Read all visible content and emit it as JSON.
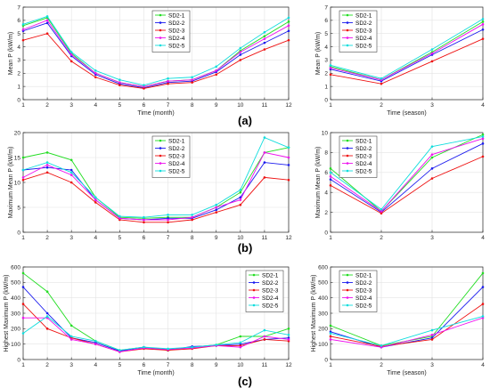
{
  "panels": [
    {
      "label": "(a)"
    },
    {
      "label": "(b)"
    },
    {
      "label": "(c)"
    }
  ],
  "chart_data": [
    {
      "type": "line",
      "x": [
        1,
        2,
        3,
        4,
        5,
        6,
        7,
        8,
        9,
        10,
        11,
        12
      ],
      "xlim": [
        1,
        12
      ],
      "ylim": [
        0,
        7
      ],
      "xticks": [
        1,
        2,
        3,
        4,
        5,
        6,
        7,
        8,
        9,
        10,
        11,
        12
      ],
      "yticks": [
        0,
        1,
        2,
        3,
        4,
        5,
        6,
        7
      ],
      "xlabel": "Time (month)",
      "ylabel": "Mean P (kW/m)",
      "legend": "top-center",
      "grid": true,
      "series": [
        {
          "name": "SD2-1",
          "color": "#22dd22",
          "values": [
            5.6,
            6.2,
            3.5,
            2.0,
            1.3,
            1.0,
            1.4,
            1.5,
            2.2,
            3.7,
            4.8,
            5.9
          ]
        },
        {
          "name": "SD2-2",
          "color": "#1a1aee",
          "values": [
            5.2,
            5.8,
            3.3,
            1.9,
            1.2,
            0.9,
            1.3,
            1.4,
            2.1,
            3.4,
            4.3,
            5.2
          ]
        },
        {
          "name": "SD2-3",
          "color": "#ee1111",
          "values": [
            4.5,
            5.0,
            2.9,
            1.7,
            1.1,
            0.85,
            1.2,
            1.3,
            1.9,
            3.0,
            3.8,
            4.5
          ]
        },
        {
          "name": "SD2-4",
          "color": "#ee11ee",
          "values": [
            5.3,
            6.0,
            3.4,
            2.0,
            1.3,
            1.0,
            1.4,
            1.5,
            2.2,
            3.6,
            4.6,
            5.6
          ]
        },
        {
          "name": "SD2-5",
          "color": "#11dddd",
          "values": [
            5.7,
            6.3,
            3.6,
            2.2,
            1.5,
            1.1,
            1.6,
            1.7,
            2.5,
            3.9,
            5.1,
            6.2
          ]
        }
      ]
    },
    {
      "type": "line",
      "x": [
        1,
        2,
        3,
        4
      ],
      "xlim": [
        1,
        4
      ],
      "ylim": [
        0,
        7
      ],
      "xticks": [
        1,
        2,
        3,
        4
      ],
      "yticks": [
        0,
        1,
        2,
        3,
        4,
        5,
        6,
        7
      ],
      "xlabel": "Time (season)",
      "ylabel": "Mean P (kW/m)",
      "legend": "top-left",
      "grid": true,
      "series": [
        {
          "name": "SD2-1",
          "color": "#22dd22",
          "values": [
            2.5,
            1.5,
            3.6,
            5.9
          ]
        },
        {
          "name": "SD2-2",
          "color": "#1a1aee",
          "values": [
            2.3,
            1.4,
            3.4,
            5.3
          ]
        },
        {
          "name": "SD2-3",
          "color": "#ee1111",
          "values": [
            1.9,
            1.2,
            2.9,
            4.6
          ]
        },
        {
          "name": "SD2-4",
          "color": "#ee11ee",
          "values": [
            2.4,
            1.5,
            3.5,
            5.7
          ]
        },
        {
          "name": "SD2-5",
          "color": "#11dddd",
          "values": [
            2.6,
            1.6,
            3.8,
            6.1
          ]
        }
      ]
    },
    {
      "type": "line",
      "x": [
        1,
        2,
        3,
        4,
        5,
        6,
        7,
        8,
        9,
        10,
        11,
        12
      ],
      "xlim": [
        1,
        12
      ],
      "ylim": [
        0,
        20
      ],
      "xticks": [
        1,
        2,
        3,
        4,
        5,
        6,
        7,
        8,
        9,
        10,
        11,
        12
      ],
      "yticks": [
        0,
        5,
        10,
        15,
        20
      ],
      "xlabel": "",
      "ylabel": "Maximum Mean P (kW/m)",
      "legend": "top-center",
      "grid": true,
      "series": [
        {
          "name": "SD2-1",
          "color": "#22dd22",
          "values": [
            15,
            16,
            14.5,
            7,
            3,
            2.8,
            3,
            3,
            5,
            8,
            16,
            17
          ]
        },
        {
          "name": "SD2-2",
          "color": "#1a1aee",
          "values": [
            12.5,
            13,
            12.5,
            6.5,
            2.8,
            2.5,
            2.8,
            2.8,
            4.5,
            7,
            14,
            13.5
          ]
        },
        {
          "name": "SD2-3",
          "color": "#ee1111",
          "values": [
            10.5,
            12,
            10,
            6,
            2.5,
            2,
            2,
            2.5,
            4,
            5.5,
            11,
            10.5
          ]
        },
        {
          "name": "SD2-4",
          "color": "#ee11ee",
          "values": [
            11,
            13.5,
            11.5,
            6.5,
            2.8,
            2.5,
            2.5,
            3,
            5,
            6.5,
            16,
            15
          ]
        },
        {
          "name": "SD2-5",
          "color": "#11dddd",
          "values": [
            12.5,
            14,
            12,
            7,
            3.2,
            3,
            3.5,
            3.5,
            5.5,
            8.5,
            19,
            17
          ]
        }
      ]
    },
    {
      "type": "line",
      "x": [
        1,
        2,
        3,
        4
      ],
      "xlim": [
        1,
        4
      ],
      "ylim": [
        0,
        10
      ],
      "xticks": [
        1,
        2,
        3,
        4
      ],
      "yticks": [
        0,
        2,
        4,
        6,
        8,
        10
      ],
      "xlabel": "",
      "ylabel": "Maximum Mean P (kW/m)",
      "legend": "top-left",
      "grid": true,
      "series": [
        {
          "name": "SD2-1",
          "color": "#22dd22",
          "values": [
            6.4,
            2.1,
            7.5,
            9.8
          ]
        },
        {
          "name": "SD2-2",
          "color": "#1a1aee",
          "values": [
            5.3,
            2.0,
            6.4,
            8.9
          ]
        },
        {
          "name": "SD2-3",
          "color": "#ee1111",
          "values": [
            4.7,
            1.9,
            5.4,
            7.6
          ]
        },
        {
          "name": "SD2-4",
          "color": "#ee11ee",
          "values": [
            5.6,
            2.1,
            7.8,
            9.4
          ]
        },
        {
          "name": "SD2-5",
          "color": "#11dddd",
          "values": [
            6.0,
            2.3,
            8.6,
            9.6
          ]
        }
      ]
    },
    {
      "type": "line",
      "x": [
        1,
        2,
        3,
        4,
        5,
        6,
        7,
        8,
        9,
        10,
        11,
        12
      ],
      "xlim": [
        1,
        12
      ],
      "ylim": [
        0,
        600
      ],
      "xticks": [
        1,
        2,
        3,
        4,
        5,
        6,
        7,
        8,
        9,
        10,
        11,
        12
      ],
      "yticks": [
        0,
        100,
        200,
        300,
        400,
        500,
        600
      ],
      "xlabel": "Time (month)",
      "ylabel": "Highest Maximum P (kW/m)",
      "legend": "top-right",
      "grid": true,
      "series": [
        {
          "name": "SD2-1",
          "color": "#22dd22",
          "values": [
            560,
            440,
            220,
            120,
            60,
            80,
            60,
            80,
            95,
            150,
            150,
            200
          ]
        },
        {
          "name": "SD2-2",
          "color": "#1a1aee",
          "values": [
            470,
            300,
            140,
            110,
            55,
            80,
            60,
            85,
            90,
            100,
            130,
            140
          ]
        },
        {
          "name": "SD2-3",
          "color": "#ee1111",
          "values": [
            360,
            200,
            140,
            100,
            50,
            70,
            60,
            70,
            90,
            90,
            130,
            120
          ]
        },
        {
          "name": "SD2-4",
          "color": "#ee11ee",
          "values": [
            270,
            270,
            130,
            100,
            50,
            75,
            65,
            75,
            90,
            80,
            150,
            130
          ]
        },
        {
          "name": "SD2-5",
          "color": "#11dddd",
          "values": [
            170,
            280,
            150,
            120,
            60,
            80,
            70,
            80,
            95,
            110,
            190,
            160
          ]
        }
      ]
    },
    {
      "type": "line",
      "x": [
        1,
        2,
        3,
        4
      ],
      "xlim": [
        1,
        4
      ],
      "ylim": [
        0,
        600
      ],
      "xticks": [
        1,
        2,
        3,
        4
      ],
      "yticks": [
        0,
        100,
        200,
        300,
        400,
        500,
        600
      ],
      "xlabel": "Time (season)",
      "ylabel": "Highest Maximum P (kW/m)",
      "legend": "top-left",
      "grid": true,
      "series": [
        {
          "name": "SD2-1",
          "color": "#22dd22",
          "values": [
            220,
            90,
            150,
            560
          ]
        },
        {
          "name": "SD2-2",
          "color": "#1a1aee",
          "values": [
            180,
            80,
            140,
            470
          ]
        },
        {
          "name": "SD2-3",
          "color": "#ee1111",
          "values": [
            150,
            85,
            130,
            360
          ]
        },
        {
          "name": "SD2-4",
          "color": "#ee11ee",
          "values": [
            130,
            80,
            160,
            270
          ]
        },
        {
          "name": "SD2-5",
          "color": "#11dddd",
          "values": [
            170,
            90,
            190,
            280
          ]
        }
      ]
    }
  ]
}
